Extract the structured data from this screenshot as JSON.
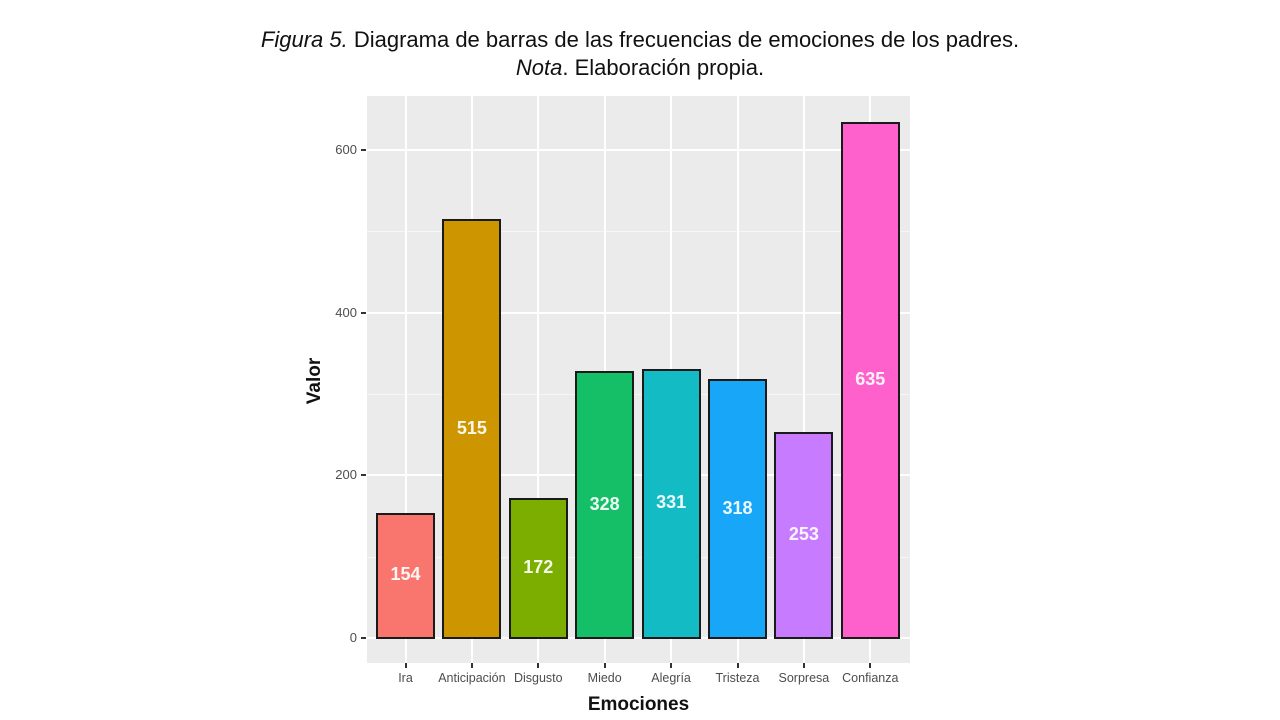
{
  "caption": {
    "figure_label": "Figura 5.",
    "figure_text": " Diagrama de barras de las frecuencias de emociones de los padres.",
    "note_label": "Nota",
    "note_text": ". Elaboración propia."
  },
  "axes": {
    "xlabel": "Emociones",
    "ylabel": "Valor",
    "yticks": [
      "0",
      "200",
      "400",
      "600"
    ]
  },
  "chart_data": {
    "type": "bar",
    "title": "Diagrama de barras de las frecuencias de emociones de los padres",
    "xlabel": "Emociones",
    "ylabel": "Valor",
    "categories": [
      "Ira",
      "Anticipación",
      "Disgusto",
      "Miedo",
      "Alegría",
      "Tristeza",
      "Sorpresa",
      "Confianza"
    ],
    "values": [
      154,
      515,
      172,
      328,
      331,
      318,
      253,
      635
    ],
    "colors": [
      "#f8766d",
      "#cd9600",
      "#7cae00",
      "#14bf68",
      "#13bcc4",
      "#17a6f8",
      "#c77cff",
      "#ff61cc"
    ],
    "ylim": [
      0,
      660
    ],
    "yticks": [
      0,
      200,
      400,
      600
    ],
    "grid": true,
    "legend": "none",
    "data_labels": true
  },
  "bars": [
    {
      "name": "Ira",
      "value": "154"
    },
    {
      "name": "Anticipación",
      "value": "515"
    },
    {
      "name": "Disgusto",
      "value": "172"
    },
    {
      "name": "Miedo",
      "value": "328"
    },
    {
      "name": "Alegría",
      "value": "331"
    },
    {
      "name": "Tristeza",
      "value": "318"
    },
    {
      "name": "Sorpresa",
      "value": "253"
    },
    {
      "name": "Confianza",
      "value": "635"
    }
  ]
}
